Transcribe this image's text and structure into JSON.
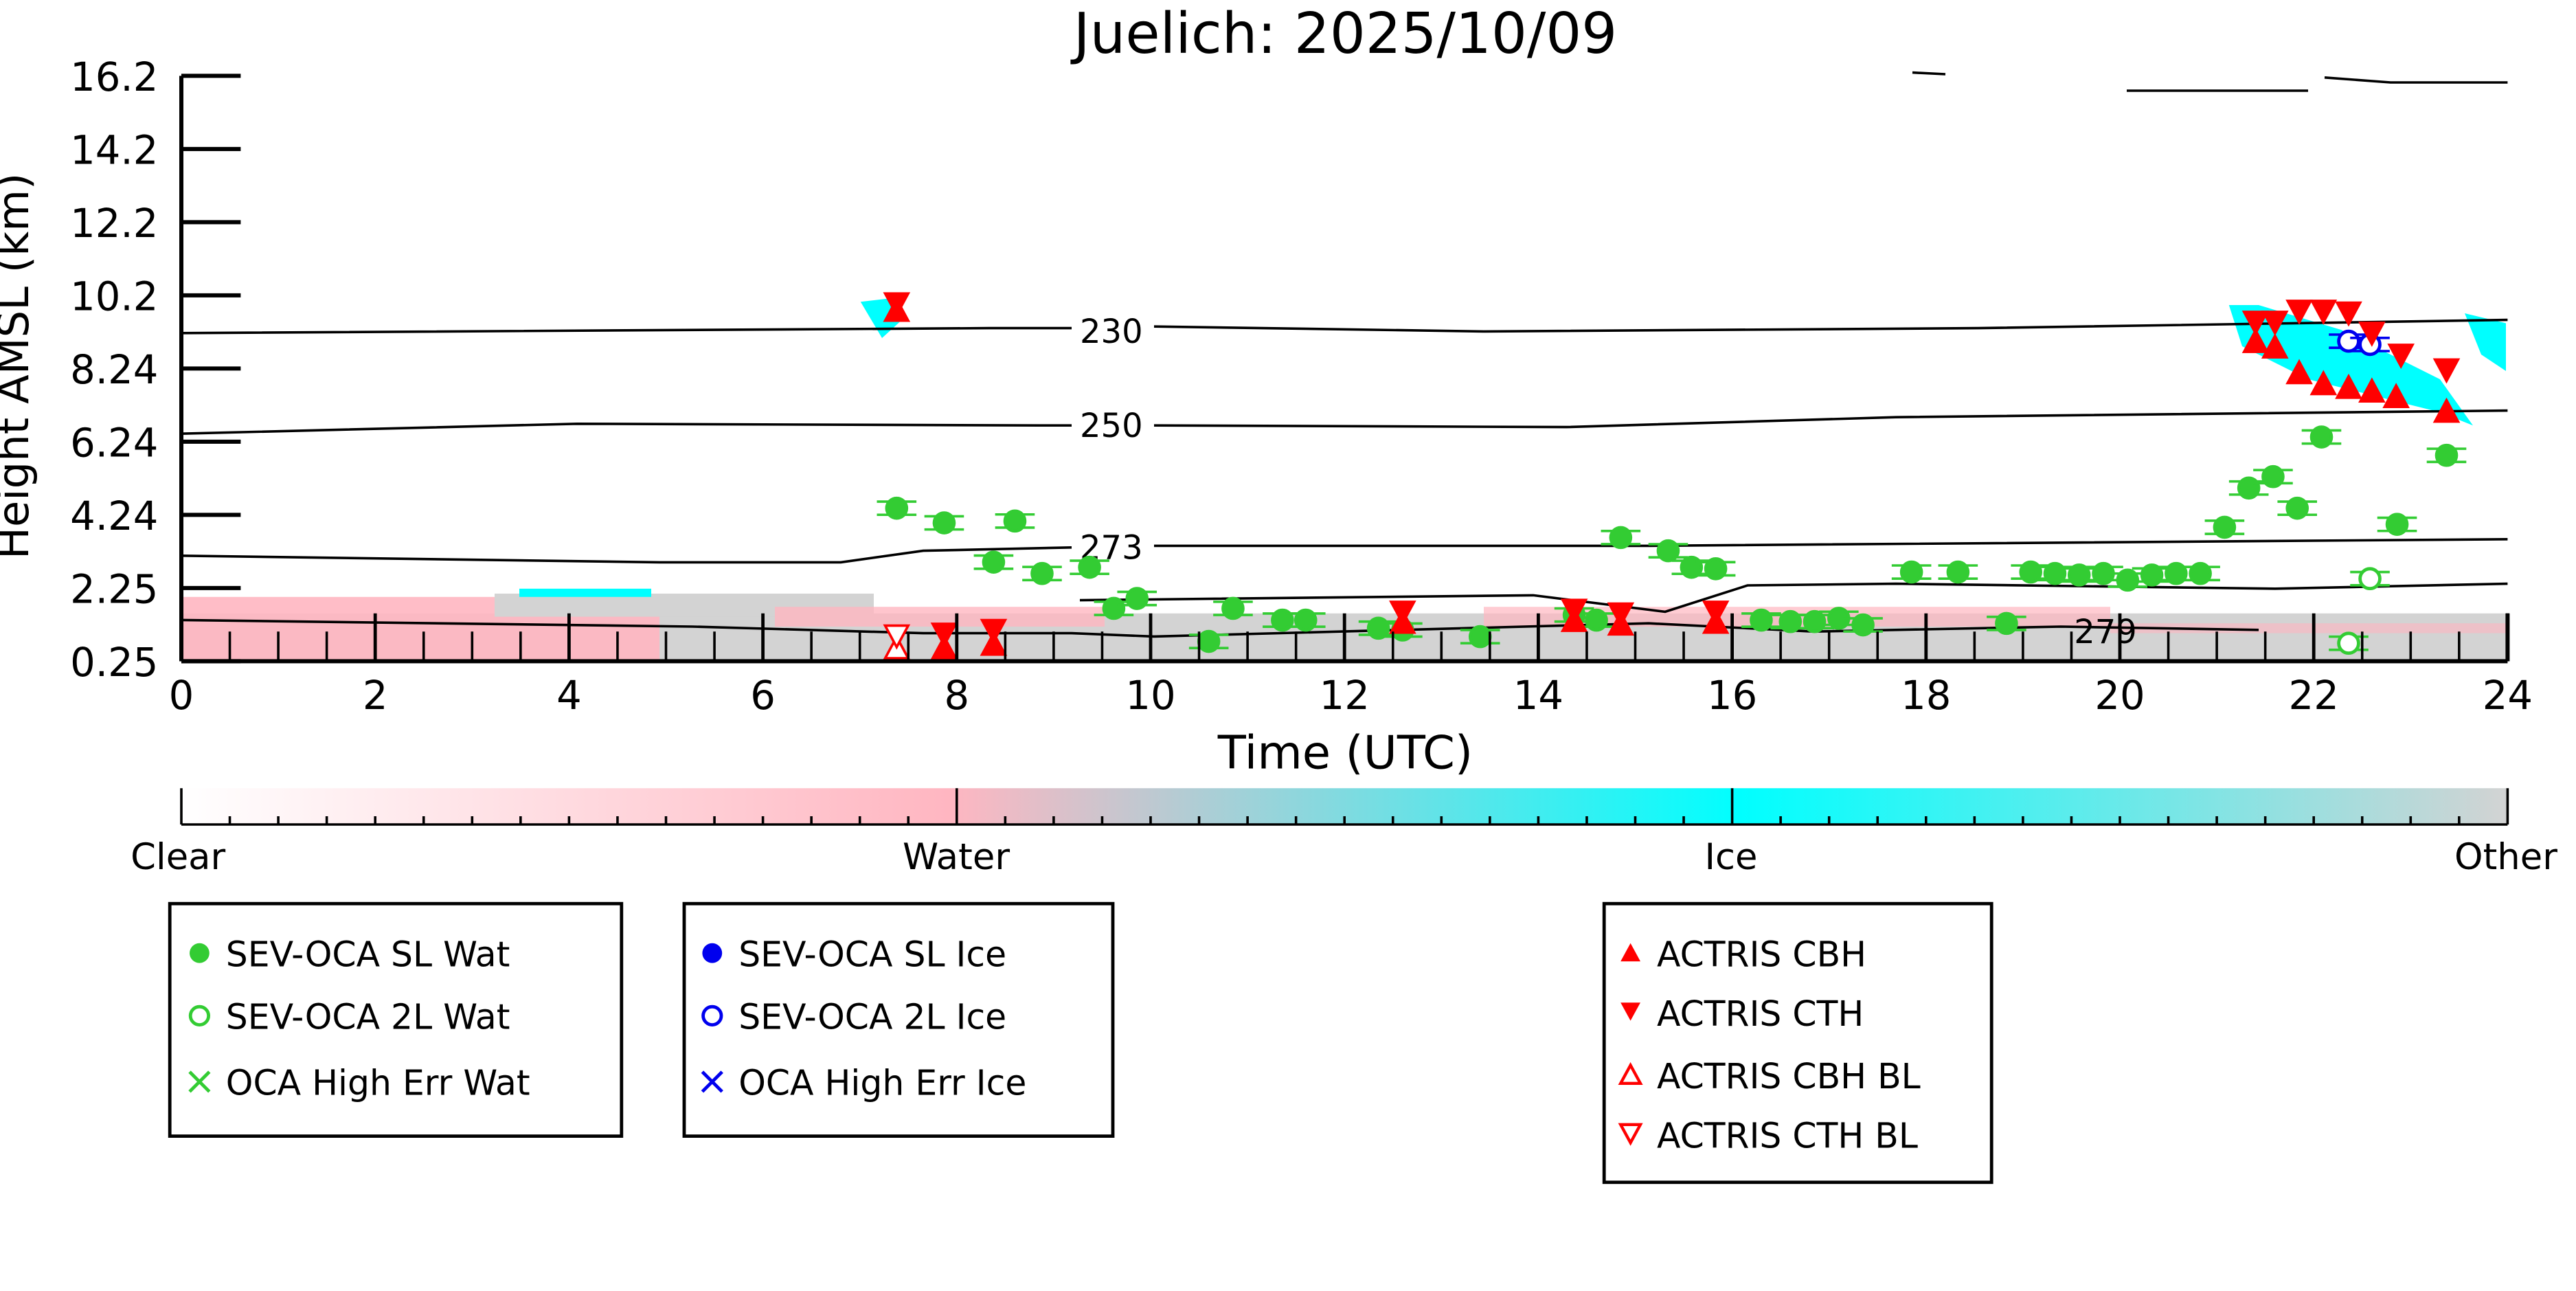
{
  "chart_data": {
    "type": "scatter",
    "title": "Juelich: 2025/10/09",
    "xlabel": "Time (UTC)",
    "ylabel": "Height AMSL (km)",
    "xlim": [
      0,
      24
    ],
    "ylim": [
      0.25,
      16.2
    ],
    "xticks": [
      "0",
      "2",
      "4",
      "6",
      "8",
      "10",
      "12",
      "14",
      "16",
      "18",
      "20",
      "22",
      "24"
    ],
    "yticks": [
      "16.2",
      "14.2",
      "12.2",
      "10.2",
      "8.24",
      "6.24",
      "4.24",
      "2.25",
      "0.25"
    ],
    "contour_labels": [
      "230",
      "250",
      "273",
      "279"
    ],
    "colorbar": {
      "labels": [
        "Clear",
        "Water",
        "Ice",
        "Other"
      ],
      "colors": [
        "#ffffff",
        "#ffb6c1",
        "#00ffff",
        "#d3d3d3"
      ]
    },
    "series": [
      {
        "name": "SEV-OCA SL Wat",
        "color": "#33cc33",
        "marker": "filled-circle",
        "points": [
          [
            7.38,
            4.42
          ],
          [
            7.87,
            4.02
          ],
          [
            8.6,
            4.07
          ],
          [
            8.38,
            2.95
          ],
          [
            8.88,
            2.64
          ],
          [
            9.37,
            2.81
          ],
          [
            9.62,
            1.69
          ],
          [
            9.86,
            1.96
          ],
          [
            10.6,
            0.79
          ],
          [
            10.85,
            1.69
          ],
          [
            11.36,
            1.37
          ],
          [
            11.6,
            1.37
          ],
          [
            12.35,
            1.15
          ],
          [
            12.6,
            1.1
          ],
          [
            13.4,
            0.92
          ],
          [
            14.37,
            1.51
          ],
          [
            14.6,
            1.37
          ],
          [
            14.85,
            3.62
          ],
          [
            15.34,
            3.26
          ],
          [
            15.58,
            2.81
          ],
          [
            15.83,
            2.77
          ],
          [
            16.3,
            1.37
          ],
          [
            16.6,
            1.33
          ],
          [
            16.85,
            1.33
          ],
          [
            17.1,
            1.42
          ],
          [
            17.35,
            1.24
          ],
          [
            17.85,
            2.68
          ],
          [
            18.33,
            2.68
          ],
          [
            18.83,
            1.28
          ],
          [
            19.08,
            2.68
          ],
          [
            19.33,
            2.64
          ],
          [
            19.58,
            2.6
          ],
          [
            19.83,
            2.64
          ],
          [
            20.08,
            2.46
          ],
          [
            20.33,
            2.6
          ],
          [
            20.58,
            2.64
          ],
          [
            20.83,
            2.64
          ],
          [
            21.08,
            3.9
          ],
          [
            21.33,
            4.97
          ],
          [
            21.58,
            5.28
          ],
          [
            21.83,
            4.42
          ],
          [
            22.08,
            6.36
          ],
          [
            22.86,
            3.98
          ],
          [
            23.37,
            5.86
          ]
        ]
      },
      {
        "name": "SEV-OCA 2L Wat",
        "color": "#33cc33",
        "marker": "open-circle",
        "points": [
          [
            22.36,
            0.74
          ],
          [
            22.58,
            2.5
          ]
        ]
      },
      {
        "name": "OCA High Err Wat",
        "color": "#33cc33",
        "marker": "x",
        "points": []
      },
      {
        "name": "SEV-OCA SL Ice",
        "color": "#0000ee",
        "marker": "filled-circle",
        "points": []
      },
      {
        "name": "SEV-OCA 2L Ice",
        "color": "#0000ee",
        "marker": "open-circle",
        "points": [
          [
            22.36,
            8.97
          ],
          [
            22.58,
            8.88
          ]
        ]
      },
      {
        "name": "OCA High Err Ice",
        "color": "#0000ee",
        "marker": "x",
        "points": []
      },
      {
        "name": "ACTRIS CBH",
        "color": "#ff0000",
        "marker": "filled-triangle-up",
        "points": [
          [
            7.38,
            9.8
          ],
          [
            7.87,
            0.6
          ],
          [
            8.38,
            0.7
          ],
          [
            12.6,
            1.3
          ],
          [
            14.37,
            1.35
          ],
          [
            14.85,
            1.25
          ],
          [
            15.83,
            1.3
          ],
          [
            21.4,
            8.95
          ],
          [
            21.6,
            8.8
          ],
          [
            21.85,
            8.1
          ],
          [
            22.1,
            7.8
          ],
          [
            22.36,
            7.7
          ],
          [
            22.6,
            7.6
          ],
          [
            22.85,
            7.45
          ],
          [
            23.37,
            7.05
          ]
        ]
      },
      {
        "name": "ACTRIS CTH",
        "color": "#ff0000",
        "marker": "filled-triangle-down",
        "points": [
          [
            7.38,
            10.0
          ],
          [
            7.87,
            1.0
          ],
          [
            8.38,
            1.1
          ],
          [
            12.6,
            1.6
          ],
          [
            14.37,
            1.65
          ],
          [
            14.85,
            1.55
          ],
          [
            15.83,
            1.6
          ],
          [
            21.4,
            9.5
          ],
          [
            21.6,
            9.5
          ],
          [
            21.85,
            9.8
          ],
          [
            22.1,
            9.8
          ],
          [
            22.36,
            9.75
          ],
          [
            22.6,
            9.2
          ],
          [
            22.9,
            8.6
          ],
          [
            23.37,
            8.2
          ]
        ]
      },
      {
        "name": "ACTRIS CBH BL",
        "color": "#ff0000",
        "marker": "open-triangle-up",
        "points": [
          [
            7.38,
            0.6
          ]
        ]
      },
      {
        "name": "ACTRIS CTH BL",
        "color": "#ff0000",
        "marker": "open-triangle-down",
        "points": [
          [
            7.38,
            0.95
          ]
        ]
      }
    ]
  },
  "legends": [
    {
      "items": [
        "SEV-OCA SL Wat",
        "SEV-OCA 2L Wat",
        "OCA High Err Wat"
      ]
    },
    {
      "items": [
        "SEV-OCA SL Ice",
        "SEV-OCA 2L Ice",
        "OCA High Err Ice"
      ]
    },
    {
      "items": [
        "ACTRIS CBH",
        "ACTRIS CTH",
        "ACTRIS CBH BL",
        "ACTRIS CTH BL"
      ]
    }
  ]
}
